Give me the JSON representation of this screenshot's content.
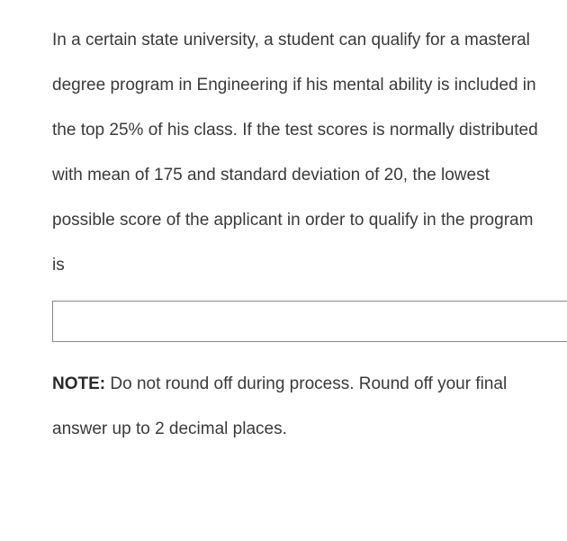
{
  "question": {
    "text": "In a certain state university, a student can qualify for a masteral degree program in Engineering  if his mental ability is included in the top 25% of his class. If the test scores is normally distributed with mean of 175 and standard deviation of 20, the lowest possible score of the applicant in order to qualify in the program is"
  },
  "answer": {
    "value": "",
    "placeholder": ""
  },
  "note": {
    "label": "NOTE:",
    "text": " Do not round off during process. Round off your final answer up to 2 decimal places."
  },
  "styling": {
    "background_color": "#ffffff",
    "text_color": "#3a3a3a",
    "font_size": 19,
    "line_height": 50,
    "input_border_color": "#888888",
    "input_width": 575,
    "input_height": 46,
    "padding_left": 58
  }
}
